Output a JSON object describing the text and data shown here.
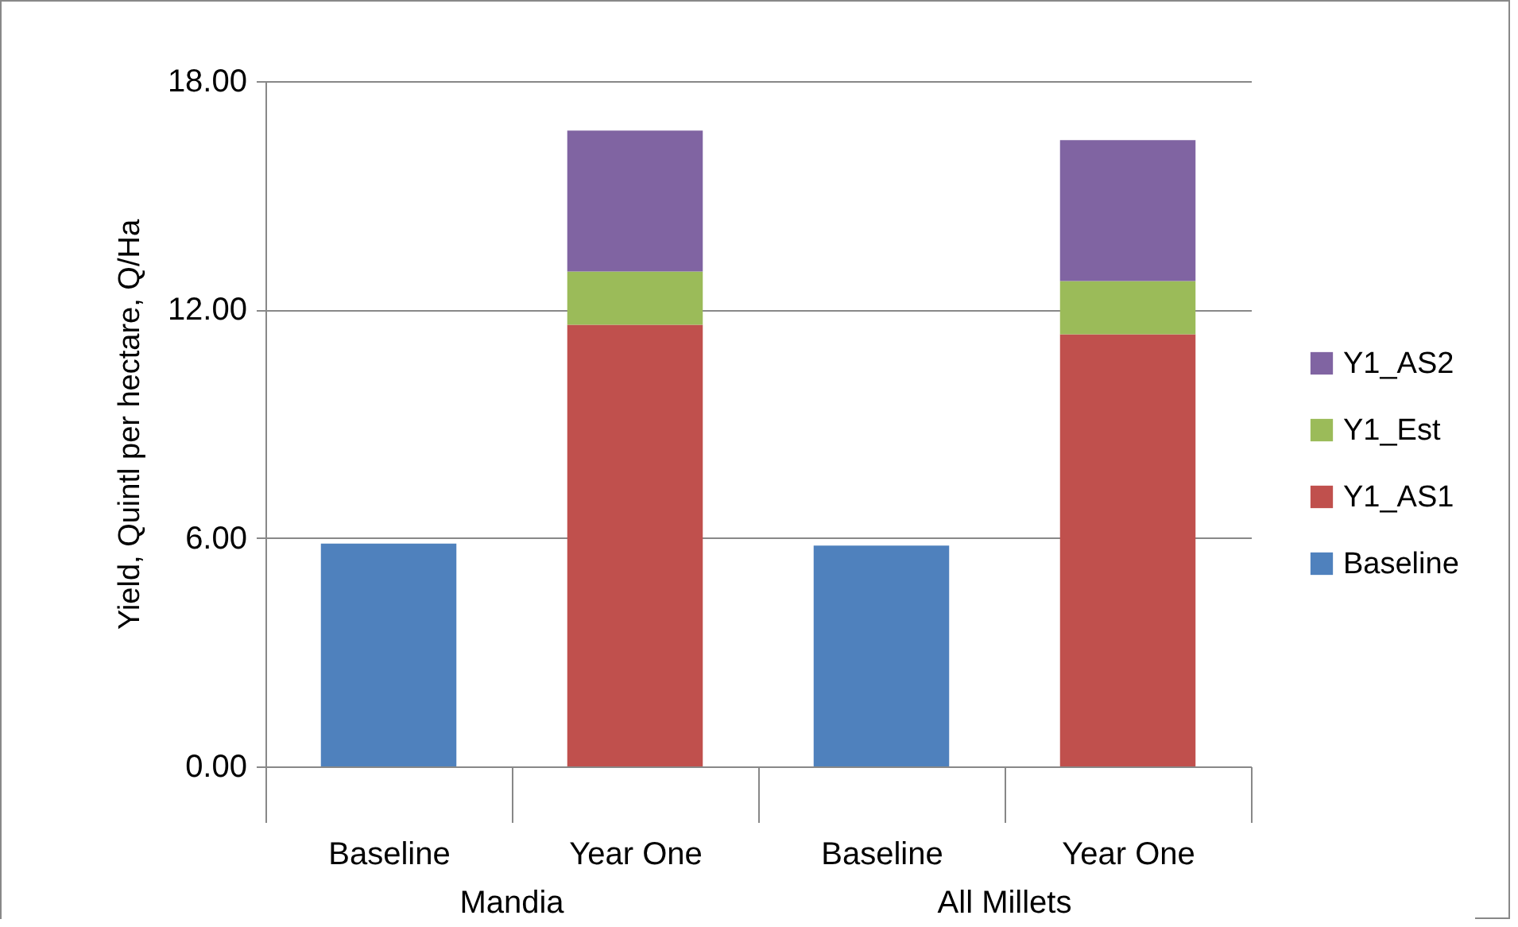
{
  "chart_data": {
    "type": "bar",
    "stacked": true,
    "ylabel": "Yield, Quintl per hectare, Q/Ha",
    "categories": [
      "Baseline",
      "Year One",
      "Baseline",
      "Year One"
    ],
    "annotations": [
      "Mandia",
      "All Millets"
    ],
    "series": [
      {
        "name": "Baseline",
        "color": "#4f81bd",
        "values": [
          5.85,
          null,
          5.8,
          null
        ]
      },
      {
        "name": "Y1_AS1",
        "color": "#c0504d",
        "values": [
          null,
          11.6,
          null,
          11.35
        ]
      },
      {
        "name": "Y1_Est",
        "color": "#9bbb59",
        "values": [
          null,
          1.4,
          null,
          1.4
        ]
      },
      {
        "name": "Y1_AS2",
        "color": "#8064a2",
        "values": [
          null,
          3.7,
          null,
          3.7
        ]
      }
    ],
    "ylim": [
      0,
      18
    ],
    "yticks": [
      {
        "value": 0,
        "label": "0.00"
      },
      {
        "value": 6,
        "label": "6.00"
      },
      {
        "value": 12,
        "label": "12.00"
      },
      {
        "value": 18,
        "label": "18.00"
      }
    ],
    "grid": "y",
    "legend": "right"
  }
}
